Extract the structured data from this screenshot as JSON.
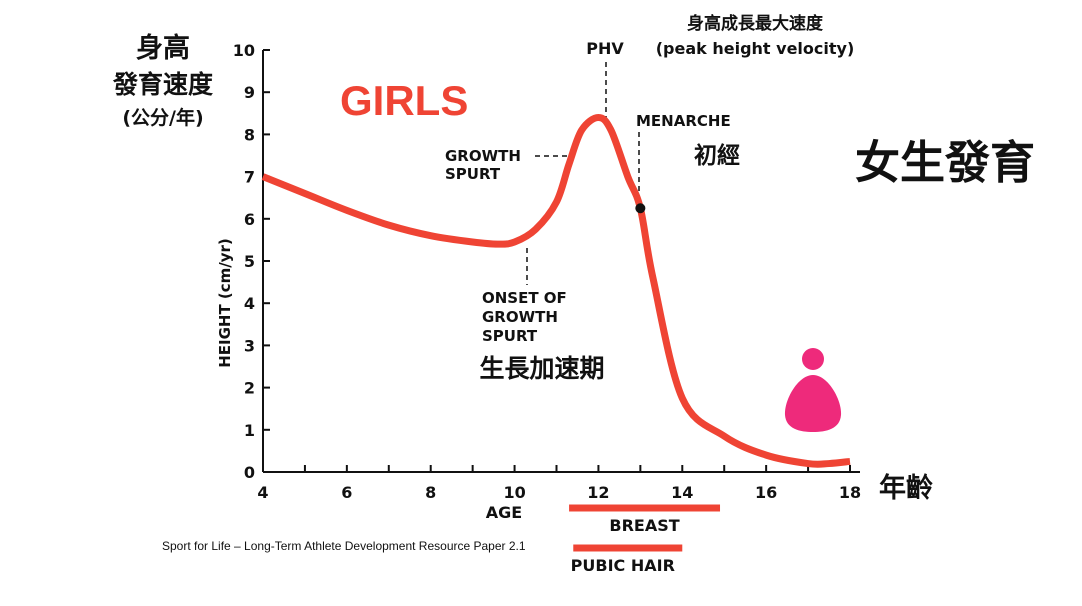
{
  "chart_data": {
    "type": "line",
    "title": "GIRLS",
    "subtitle_zh": "女生發育",
    "ylabel": "HEIGHT (cm/yr)",
    "ylabel_zh_line1": "身高",
    "ylabel_zh_line2": "發育速度",
    "ylabel_zh_line3": "(公分/年)",
    "xlabel": "AGE",
    "xlabel_zh": "年齡",
    "xlim": [
      4,
      18
    ],
    "ylim": [
      0,
      10
    ],
    "x_ticks": [
      4,
      6,
      8,
      10,
      12,
      14,
      16,
      18
    ],
    "y_ticks": [
      0,
      1,
      2,
      3,
      4,
      5,
      6,
      7,
      8,
      9,
      10
    ],
    "x_minor_step": 1,
    "series": [
      {
        "color": "#ef4434",
        "x": [
          4,
          5,
          6,
          7,
          8,
          9,
          9.6,
          10,
          10.5,
          11,
          11.3,
          11.6,
          12,
          12.3,
          12.7,
          13,
          13.3,
          14,
          15,
          16,
          17,
          17.5,
          18
        ],
        "values": [
          7.0,
          6.6,
          6.2,
          5.85,
          5.6,
          5.45,
          5.4,
          5.45,
          5.75,
          6.4,
          7.3,
          8.1,
          8.4,
          8.1,
          7.0,
          6.25,
          4.6,
          1.75,
          0.85,
          0.4,
          0.2,
          0.2,
          0.25
        ]
      }
    ],
    "annotations": {
      "phv_zh": "身高成長最大速度",
      "phv": "PHV",
      "phv_en": "(peak height velocity)",
      "menarche": "MENARCHE",
      "menarche_zh": "初經",
      "growth_spurt_line1": "GROWTH",
      "growth_spurt_line2": "SPURT",
      "onset_line1": "ONSET OF",
      "onset_line2": "GROWTH",
      "onset_line3": "SPURT",
      "growth_zh": "生長加速期"
    },
    "bars": [
      {
        "label": "BREAST",
        "from": 11.3,
        "to": 14.9
      },
      {
        "label": "PUBIC HAIR",
        "from": 11.4,
        "to": 14
      }
    ],
    "menarche_age": 13,
    "menarche_value": 6.25,
    "phv_age": 12
  },
  "source": "Sport for Life – Long-Term Athlete Development Resource Paper 2.1",
  "colors": {
    "accent": "#ef4434",
    "figure": "#ee2a7b",
    "text": "#111111"
  },
  "icons": {
    "figure": "person-icon"
  }
}
